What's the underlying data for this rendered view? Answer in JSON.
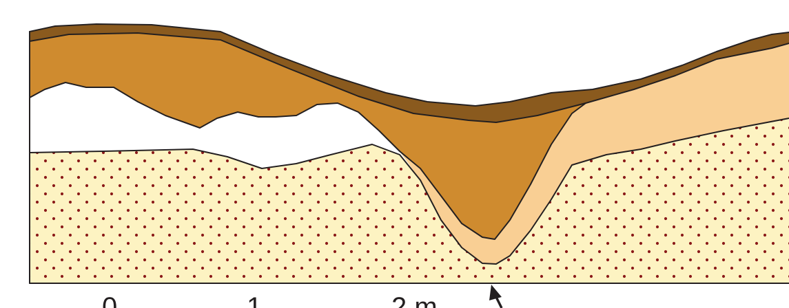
{
  "figure": {
    "scale_bar": {
      "labels": [
        "0",
        "1",
        "2 m"
      ]
    },
    "colors": {
      "topsoil": "#8a5a1e",
      "fill_layer": "#cf8b2f",
      "light_layer": "#f9cf94",
      "natural_subsoil": "#fdf3c2",
      "stipple_dots": "#8b1a1a",
      "outline": "#231f20",
      "background": "#ffffff"
    },
    "marker": "arrow-up"
  }
}
